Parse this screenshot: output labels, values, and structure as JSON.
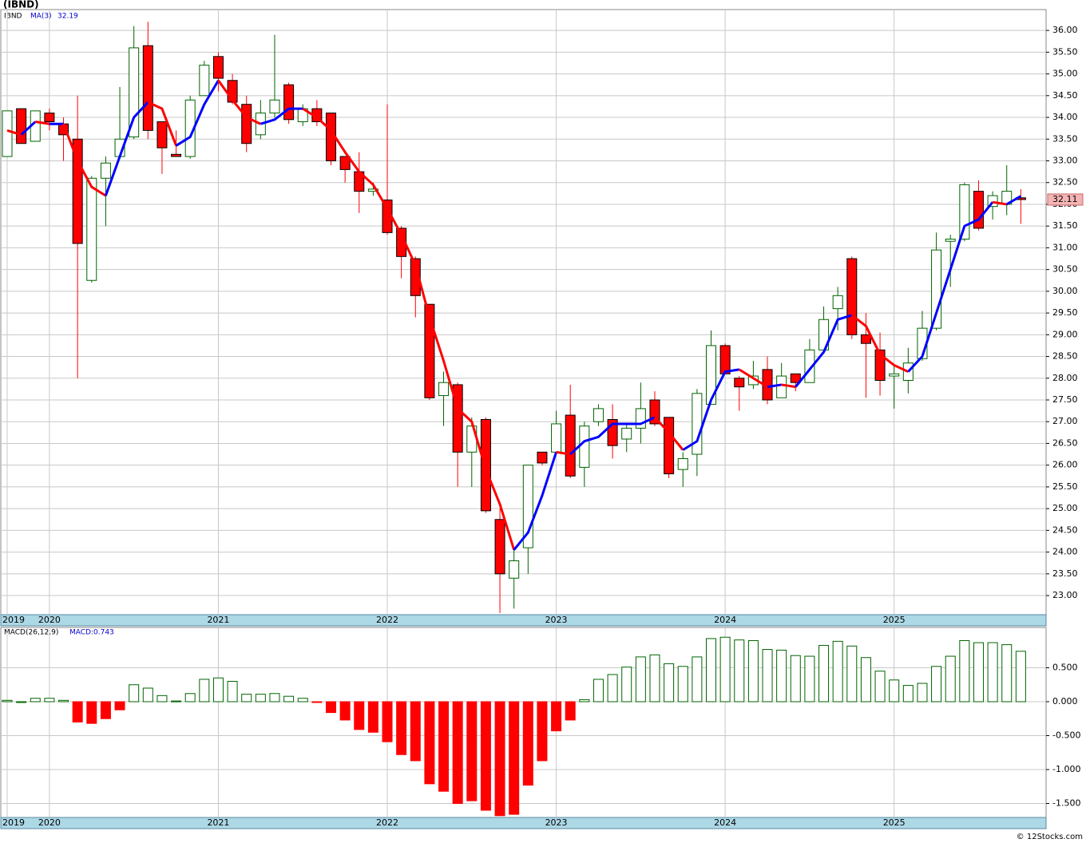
{
  "chart_data": [
    {
      "type": "candlestick",
      "title": "(IBND)",
      "categories": [
        "2019",
        null,
        null,
        "2020",
        null,
        null,
        null,
        null,
        null,
        null,
        null,
        null,
        null,
        null,
        null,
        "2021",
        null,
        null,
        null,
        null,
        null,
        null,
        null,
        null,
        null,
        null,
        null,
        "2022",
        null,
        null,
        null,
        null,
        null,
        null,
        null,
        null,
        null,
        null,
        null,
        "2023",
        null,
        null,
        null,
        null,
        null,
        null,
        null,
        null,
        null,
        null,
        null,
        "2024",
        null,
        null,
        null,
        null,
        null,
        null,
        null,
        null,
        null,
        null,
        null,
        "2025",
        null,
        null,
        null,
        null,
        null,
        null,
        null,
        null,
        null
      ],
      "series": [
        {
          "name": "IBND",
          "up_color": "#006400",
          "down_color": "#ff0000",
          "open": [
            33.1,
            34.2,
            33.45,
            34.1,
            33.85,
            33.5,
            30.25,
            32.6,
            33.1,
            33.55,
            35.65,
            33.9,
            33.15,
            33.1,
            34.5,
            35.4,
            34.85,
            34.3,
            33.6,
            34.1,
            34.75,
            33.9,
            34.2,
            34.1,
            33.1,
            32.75,
            32.3,
            32.1,
            31.45,
            30.75,
            29.7,
            27.6,
            27.85,
            26.3,
            27.05,
            24.75,
            23.4,
            24.1,
            26.3,
            26.3,
            27.15,
            25.95,
            27.0,
            27.05,
            26.6,
            26.85,
            27.5,
            27.1,
            25.9,
            26.25,
            27.4,
            28.75,
            28.0,
            27.85,
            28.2,
            27.55,
            28.1,
            27.9,
            28.65,
            29.6,
            30.75,
            29.0,
            28.65,
            28.05,
            27.95,
            28.45,
            29.15,
            31.15,
            31.2,
            32.3,
            31.95,
            32.0,
            32.15
          ],
          "high": [
            34.15,
            34.2,
            34.15,
            34.2,
            34.0,
            34.5,
            32.65,
            33.1,
            34.7,
            36.1,
            36.2,
            33.9,
            33.7,
            34.5,
            35.3,
            35.5,
            35.0,
            34.5,
            34.4,
            35.9,
            34.8,
            34.3,
            34.4,
            34.1,
            33.1,
            33.2,
            32.5,
            34.3,
            31.5,
            30.8,
            29.7,
            28.15,
            27.9,
            27.1,
            27.1,
            25.0,
            24.1,
            26.0,
            26.3,
            27.25,
            27.85,
            27.0,
            27.4,
            27.4,
            26.95,
            27.9,
            27.7,
            27.1,
            26.3,
            27.75,
            29.1,
            28.8,
            28.05,
            28.4,
            28.5,
            28.35,
            28.1,
            28.9,
            29.65,
            30.1,
            30.8,
            29.5,
            29.05,
            28.3,
            28.7,
            29.55,
            31.35,
            31.3,
            32.5,
            32.55,
            32.3,
            32.9,
            32.35
          ],
          "low": [
            33.1,
            33.4,
            33.45,
            33.7,
            33.0,
            28.0,
            30.2,
            31.5,
            33.1,
            33.5,
            33.5,
            32.7,
            33.1,
            33.05,
            34.5,
            34.6,
            34.3,
            33.2,
            33.5,
            34.0,
            33.85,
            33.8,
            33.8,
            32.9,
            32.5,
            31.8,
            32.2,
            31.3,
            30.3,
            29.4,
            27.5,
            26.9,
            25.5,
            25.5,
            24.9,
            22.6,
            22.7,
            23.5,
            26.0,
            26.25,
            25.7,
            25.5,
            26.9,
            26.15,
            26.3,
            26.5,
            26.9,
            25.7,
            25.5,
            25.75,
            27.4,
            28.1,
            27.25,
            27.75,
            27.4,
            27.55,
            27.7,
            27.9,
            28.6,
            29.1,
            28.9,
            27.55,
            27.6,
            27.3,
            27.65,
            28.4,
            29.1,
            30.1,
            31.15,
            31.4,
            31.65,
            31.75,
            31.55
          ],
          "close": [
            34.15,
            33.4,
            34.15,
            33.9,
            33.6,
            31.1,
            32.6,
            32.95,
            33.5,
            35.6,
            33.7,
            33.3,
            33.1,
            34.4,
            35.2,
            34.9,
            34.35,
            33.4,
            34.1,
            34.4,
            33.95,
            34.2,
            33.9,
            33.0,
            32.8,
            32.3,
            32.35,
            31.35,
            30.8,
            29.9,
            27.55,
            27.9,
            26.3,
            26.9,
            24.95,
            23.5,
            23.8,
            26.0,
            26.05,
            26.95,
            25.75,
            26.9,
            27.3,
            26.45,
            26.85,
            27.3,
            26.95,
            25.8,
            26.15,
            27.65,
            28.75,
            28.1,
            27.8,
            28.05,
            27.5,
            28.05,
            27.9,
            28.65,
            29.35,
            29.9,
            29.0,
            28.8,
            27.95,
            28.1,
            28.35,
            29.15,
            30.95,
            31.2,
            32.45,
            31.45,
            32.2,
            32.3,
            32.11
          ]
        }
      ],
      "ma": {
        "name": "MA(3)",
        "up_color": "#0000ff",
        "down_color": "#ff0000",
        "values": [
          33.7,
          33.6,
          33.9,
          33.85,
          33.85,
          33.0,
          32.4,
          32.2,
          33.1,
          34.0,
          34.35,
          34.2,
          33.35,
          33.55,
          34.3,
          34.85,
          34.4,
          34.0,
          33.85,
          33.95,
          34.2,
          34.2,
          34.0,
          33.7,
          33.2,
          32.75,
          32.45,
          31.9,
          31.3,
          30.6,
          29.4,
          28.4,
          27.3,
          27.0,
          25.9,
          25.1,
          24.05,
          24.45,
          25.3,
          26.3,
          26.25,
          26.55,
          26.65,
          26.95,
          26.95,
          26.95,
          27.1,
          26.75,
          26.35,
          26.55,
          27.5,
          28.15,
          28.2,
          28.0,
          27.8,
          27.85,
          27.8,
          28.2,
          28.6,
          29.35,
          29.45,
          29.2,
          28.55,
          28.3,
          28.15,
          28.5,
          29.5,
          30.5,
          31.5,
          31.65,
          32.05,
          32.0,
          32.19
        ]
      },
      "ylim": [
        22.56,
        36.48
      ],
      "yticks": [
        {
          "value": 23,
          "label": "23.00"
        },
        {
          "value": 23.5,
          "label": "23.50"
        },
        {
          "value": 24,
          "label": "24.00"
        },
        {
          "value": 24.5,
          "label": "24.50"
        },
        {
          "value": 25,
          "label": "25.00"
        },
        {
          "value": 25.5,
          "label": "25.50"
        },
        {
          "value": 26,
          "label": "26.00"
        },
        {
          "value": 26.5,
          "label": "26.50"
        },
        {
          "value": 27,
          "label": "27.00"
        },
        {
          "value": 27.5,
          "label": "27.50"
        },
        {
          "value": 28,
          "label": "28.00"
        },
        {
          "value": 28.5,
          "label": "28.50"
        },
        {
          "value": 29,
          "label": "29.00"
        },
        {
          "value": 29.5,
          "label": "29.50"
        },
        {
          "value": 30,
          "label": "30.00"
        },
        {
          "value": 30.5,
          "label": "30.50"
        },
        {
          "value": 31,
          "label": "31.00"
        },
        {
          "value": 31.5,
          "label": "31.50"
        },
        {
          "value": 32,
          "label": "32.00"
        },
        {
          "value": 32.5,
          "label": "32.50"
        },
        {
          "value": 33,
          "label": "33.00"
        },
        {
          "value": 33.5,
          "label": "33.50"
        },
        {
          "value": 34,
          "label": "34.00"
        },
        {
          "value": 34.5,
          "label": "34.50"
        },
        {
          "value": 35,
          "label": "35.00"
        },
        {
          "value": 35.5,
          "label": "35.50"
        },
        {
          "value": 36,
          "label": "36.00"
        }
      ],
      "grid": true
    },
    {
      "type": "bar",
      "title": "MACD(26,12,9)",
      "indicator_label": "MACD:0.743",
      "pos_color": "#006400",
      "neg_color": "#ff0000",
      "values": [
        0.02,
        0.0,
        0.05,
        0.05,
        0.02,
        -0.3,
        -0.32,
        -0.25,
        -0.12,
        0.25,
        0.2,
        0.09,
        0.01,
        0.12,
        0.33,
        0.35,
        0.3,
        0.11,
        0.11,
        0.12,
        0.08,
        0.05,
        -0.01,
        -0.16,
        -0.27,
        -0.41,
        -0.45,
        -0.59,
        -0.78,
        -0.87,
        -1.21,
        -1.32,
        -1.5,
        -1.46,
        -1.6,
        -1.68,
        -1.66,
        -1.23,
        -0.87,
        -0.43,
        -0.27,
        0.03,
        0.33,
        0.4,
        0.51,
        0.66,
        0.69,
        0.56,
        0.52,
        0.66,
        0.93,
        0.95,
        0.91,
        0.9,
        0.77,
        0.76,
        0.68,
        0.67,
        0.83,
        0.89,
        0.82,
        0.65,
        0.45,
        0.32,
        0.24,
        0.27,
        0.52,
        0.67,
        0.9,
        0.87,
        0.87,
        0.84,
        0.743
      ],
      "ylim": [
        -1.706,
        1.094
      ],
      "yticks": [
        {
          "value": -1.5,
          "label": "-1.500"
        },
        {
          "value": -1,
          "label": "-1.000"
        },
        {
          "value": -0.5,
          "label": "-0.500"
        },
        {
          "value": 0,
          "label": "0.000"
        },
        {
          "value": 0.5,
          "label": "0.500"
        }
      ],
      "grid": true
    }
  ],
  "footer": "© 12Stocks.com"
}
